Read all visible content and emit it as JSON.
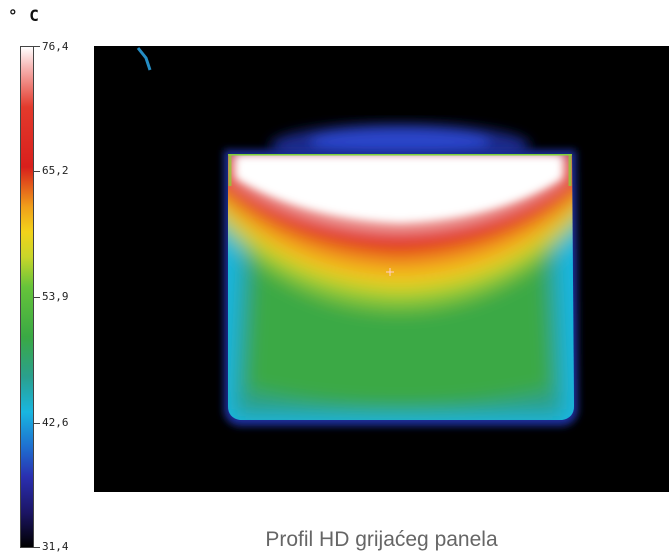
{
  "unit": "° C",
  "scale": {
    "ticks": [
      "76,4",
      "65,2",
      "53,9",
      "42,6",
      "31,4"
    ]
  },
  "caption": "Profil HD grijaćeg panela",
  "colors": {
    "hot_white": "#ffffff",
    "red": "#e0231d",
    "orange": "#f39a1c",
    "yellow": "#f2d31a",
    "green": "#3aa944",
    "cyan": "#19b6e0",
    "blue": "#2a3cc0",
    "background": "#000000"
  }
}
